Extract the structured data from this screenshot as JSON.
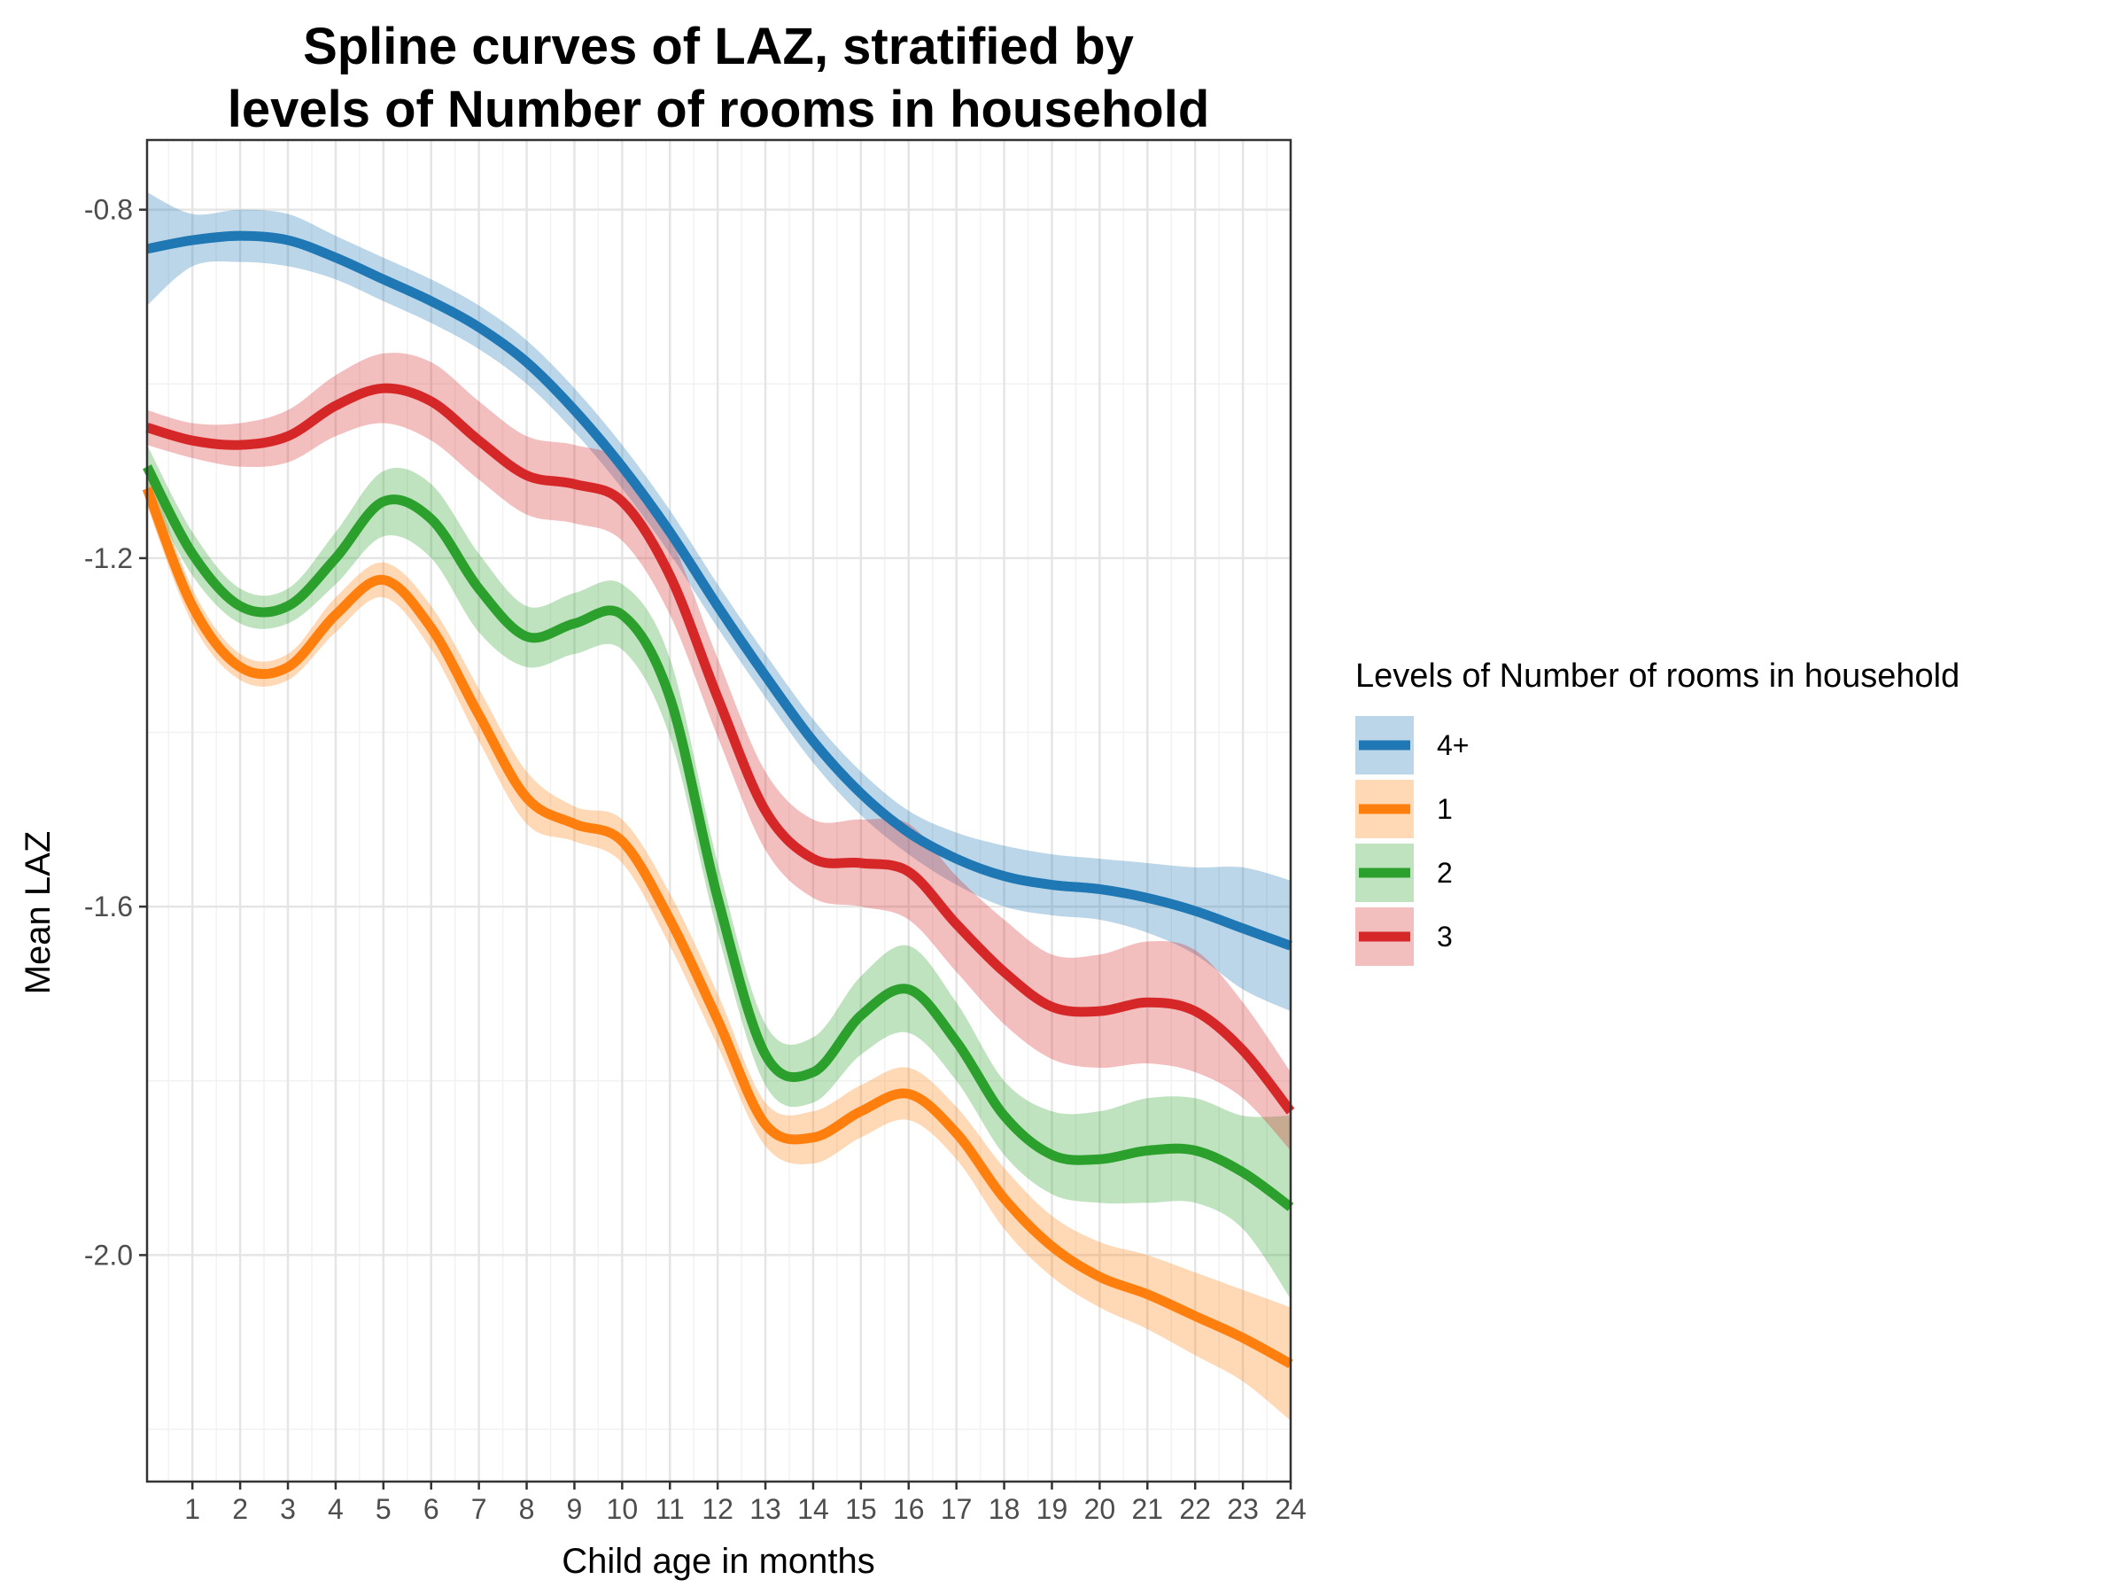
{
  "chart_data": {
    "type": "line",
    "title_lines": [
      "Spline curves of LAZ, stratified by",
      "levels of Number of rooms in household"
    ],
    "xlabel": "Child age in months",
    "ylabel": "Mean LAZ",
    "xlim": [
      0.05,
      24
    ],
    "ylim": [
      -2.26,
      -0.72
    ],
    "x_ticks": [
      1,
      2,
      3,
      4,
      5,
      6,
      7,
      8,
      9,
      10,
      11,
      12,
      13,
      14,
      15,
      16,
      17,
      18,
      19,
      20,
      21,
      22,
      23,
      24
    ],
    "y_ticks": [
      -0.8,
      -1.2,
      -1.6,
      -2.0
    ],
    "y_tick_labels": [
      "-0.8",
      "-1.2",
      "-1.6",
      "-2.0"
    ],
    "grid": true,
    "legend": {
      "title": "Levels of Number of rooms in household",
      "position": "right"
    },
    "series": [
      {
        "name": "4+",
        "color": "#1f77b4",
        "x": [
          0.05,
          1,
          2,
          3,
          4,
          5,
          6,
          7,
          8,
          9,
          10,
          11,
          12,
          13,
          14,
          15,
          16,
          17,
          18,
          19,
          20,
          21,
          22,
          23,
          24
        ],
        "y": [
          -0.845,
          -0.835,
          -0.83,
          -0.835,
          -0.855,
          -0.88,
          -0.905,
          -0.935,
          -0.975,
          -1.03,
          -1.095,
          -1.17,
          -1.255,
          -1.335,
          -1.41,
          -1.47,
          -1.515,
          -1.545,
          -1.565,
          -1.575,
          -1.58,
          -1.59,
          -1.605,
          -1.625,
          -1.645
        ],
        "lower": [
          -0.91,
          -0.865,
          -0.86,
          -0.865,
          -0.88,
          -0.905,
          -0.93,
          -0.96,
          -1.0,
          -1.055,
          -1.12,
          -1.195,
          -1.28,
          -1.36,
          -1.435,
          -1.495,
          -1.54,
          -1.575,
          -1.6,
          -1.61,
          -1.615,
          -1.63,
          -1.655,
          -1.695,
          -1.72
        ],
        "upper": [
          -0.78,
          -0.805,
          -0.8,
          -0.805,
          -0.83,
          -0.855,
          -0.88,
          -0.91,
          -0.95,
          -1.005,
          -1.07,
          -1.145,
          -1.23,
          -1.31,
          -1.385,
          -1.445,
          -1.49,
          -1.515,
          -1.53,
          -1.54,
          -1.545,
          -1.55,
          -1.555,
          -1.555,
          -1.57
        ]
      },
      {
        "name": "1",
        "color": "#ff7f0e",
        "x": [
          0.05,
          1,
          2,
          3,
          4,
          5,
          6,
          7,
          8,
          9,
          10,
          11,
          12,
          13,
          14,
          15,
          16,
          17,
          18,
          19,
          20,
          21,
          22,
          23,
          24
        ],
        "y": [
          -1.12,
          -1.255,
          -1.325,
          -1.325,
          -1.265,
          -1.225,
          -1.28,
          -1.38,
          -1.475,
          -1.505,
          -1.525,
          -1.615,
          -1.73,
          -1.85,
          -1.865,
          -1.835,
          -1.815,
          -1.86,
          -1.935,
          -1.99,
          -2.025,
          -2.045,
          -2.07,
          -2.095,
          -2.125
        ],
        "lower": [
          -1.14,
          -1.275,
          -1.34,
          -1.34,
          -1.285,
          -1.245,
          -1.305,
          -1.41,
          -1.505,
          -1.525,
          -1.55,
          -1.645,
          -1.76,
          -1.875,
          -1.895,
          -1.865,
          -1.845,
          -1.89,
          -1.97,
          -2.025,
          -2.06,
          -2.085,
          -2.115,
          -2.145,
          -2.19
        ],
        "upper": [
          -1.09,
          -1.235,
          -1.31,
          -1.31,
          -1.245,
          -1.205,
          -1.255,
          -1.35,
          -1.445,
          -1.485,
          -1.5,
          -1.585,
          -1.7,
          -1.825,
          -1.835,
          -1.805,
          -1.785,
          -1.83,
          -1.9,
          -1.955,
          -1.985,
          -2.0,
          -2.02,
          -2.04,
          -2.06
        ]
      },
      {
        "name": "2",
        "color": "#2ca02c",
        "x": [
          0.05,
          1,
          2,
          3,
          4,
          5,
          6,
          7,
          8,
          9,
          10,
          11,
          12,
          13,
          14,
          15,
          16,
          17,
          18,
          19,
          20,
          21,
          22,
          23,
          24
        ],
        "y": [
          -1.095,
          -1.195,
          -1.255,
          -1.255,
          -1.2,
          -1.135,
          -1.155,
          -1.235,
          -1.29,
          -1.275,
          -1.265,
          -1.36,
          -1.59,
          -1.77,
          -1.79,
          -1.725,
          -1.695,
          -1.755,
          -1.84,
          -1.885,
          -1.89,
          -1.88,
          -1.88,
          -1.905,
          -1.945
        ],
        "lower": [
          -1.12,
          -1.22,
          -1.275,
          -1.275,
          -1.23,
          -1.175,
          -1.2,
          -1.285,
          -1.325,
          -1.31,
          -1.305,
          -1.405,
          -1.63,
          -1.805,
          -1.825,
          -1.77,
          -1.745,
          -1.8,
          -1.885,
          -1.93,
          -1.94,
          -1.94,
          -1.94,
          -1.97,
          -2.05
        ],
        "upper": [
          -1.07,
          -1.17,
          -1.235,
          -1.235,
          -1.17,
          -1.1,
          -1.115,
          -1.195,
          -1.255,
          -1.24,
          -1.23,
          -1.315,
          -1.55,
          -1.735,
          -1.75,
          -1.68,
          -1.645,
          -1.71,
          -1.8,
          -1.835,
          -1.835,
          -1.82,
          -1.82,
          -1.84,
          -1.84
        ]
      },
      {
        "name": "3",
        "color": "#d62728",
        "x": [
          0.05,
          1,
          2,
          3,
          4,
          5,
          6,
          7,
          8,
          9,
          10,
          11,
          12,
          13,
          14,
          15,
          16,
          17,
          18,
          19,
          20,
          21,
          22,
          23,
          24
        ],
        "y": [
          -1.05,
          -1.065,
          -1.07,
          -1.06,
          -1.025,
          -1.005,
          -1.02,
          -1.065,
          -1.105,
          -1.115,
          -1.135,
          -1.22,
          -1.36,
          -1.49,
          -1.545,
          -1.55,
          -1.56,
          -1.62,
          -1.675,
          -1.715,
          -1.72,
          -1.71,
          -1.72,
          -1.765,
          -1.835
        ],
        "lower": [
          -1.07,
          -1.085,
          -1.095,
          -1.09,
          -1.06,
          -1.045,
          -1.065,
          -1.11,
          -1.15,
          -1.16,
          -1.18,
          -1.265,
          -1.405,
          -1.535,
          -1.59,
          -1.6,
          -1.615,
          -1.675,
          -1.735,
          -1.775,
          -1.785,
          -1.78,
          -1.79,
          -1.82,
          -1.88
        ],
        "upper": [
          -1.03,
          -1.045,
          -1.045,
          -1.03,
          -0.99,
          -0.965,
          -0.975,
          -1.02,
          -1.06,
          -1.07,
          -1.09,
          -1.175,
          -1.315,
          -1.445,
          -1.5,
          -1.5,
          -1.505,
          -1.565,
          -1.615,
          -1.655,
          -1.655,
          -1.64,
          -1.65,
          -1.71,
          -1.79
        ]
      }
    ]
  }
}
